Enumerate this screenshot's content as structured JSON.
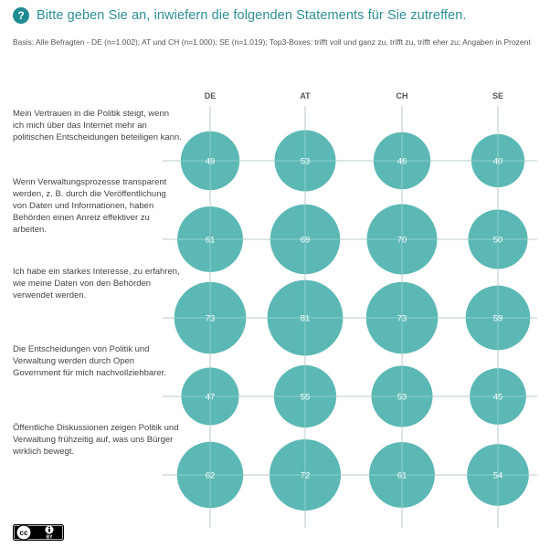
{
  "header": {
    "icon": "question-icon",
    "icon_glyph": "?",
    "question": "Bitte geben Sie an, inwiefern die folgenden Statements für Sie zutreffen.",
    "basis": "Basis: Alle Befragten - DE (n=1.002); AT und CH (n=1.000); SE (n=1.019); Top3-Boxes: trifft voll und ganz zu, trifft zu, trifft eher zu; Angaben in Prozent"
  },
  "colors": {
    "bubble": "#5bb8b4",
    "grid": "#b9c8cc",
    "accent": "#1f8c93",
    "bubble_label": "#ffffff"
  },
  "chart_data": {
    "type": "bubble",
    "columns": [
      "DE",
      "AT",
      "CH",
      "SE"
    ],
    "rows": [
      {
        "label": "Mein Vertrauen in die Politik steigt, wenn ich mich über das Internet mehr an politischen Entscheidungen beteiligen kann.",
        "values": [
          49,
          53,
          46,
          40
        ]
      },
      {
        "label": "Wenn Verwaltungsprozesse transparent werden, z. B. durch die Veröffentlichung von Daten und Informationen, haben Behörden einen Anreiz effektiver zu arbeiten.",
        "values": [
          61,
          69,
          70,
          50
        ]
      },
      {
        "label": "Ich habe ein starkes Interesse, zu erfahren, wie meine Daten von den Behörden verwendet werden.",
        "values": [
          73,
          81,
          73,
          59
        ]
      },
      {
        "label": "Die Entscheidungen von Politik und Verwaltung werden durch Open Government für mich nachvollziehbarer.",
        "values": [
          47,
          55,
          53,
          45
        ]
      },
      {
        "label": "Öffentliche Diskussionen zeigen Politik und Verwaltung frühzeitig auf, was uns Bürger wirklich bewegt.",
        "values": [
          62,
          72,
          61,
          54
        ]
      }
    ],
    "unit": "Prozent"
  },
  "footer": {
    "license_icon": "cc-by-icon",
    "license_text": "BY"
  }
}
